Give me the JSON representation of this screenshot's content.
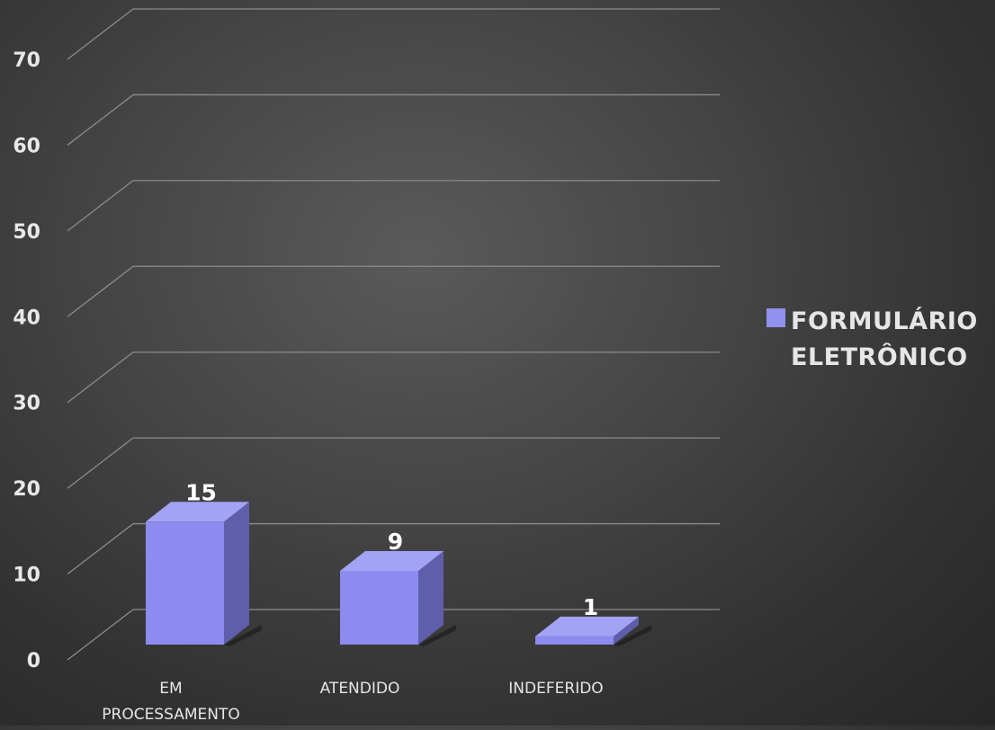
{
  "chart_data": {
    "type": "bar",
    "categories": [
      "EM PROCESSAMENTO",
      "ATENDIDO",
      "INDEFERIDO"
    ],
    "series": [
      {
        "name": "FORMULÁRIO ELETRÔNICO",
        "values": [
          15,
          9,
          1
        ]
      }
    ],
    "ylim": [
      0,
      70
    ],
    "yticks": [
      0,
      10,
      20,
      30,
      40,
      50,
      60,
      70
    ],
    "grid": true,
    "legend_position": "right",
    "style": "3d-column",
    "colors": {
      "front": "#8b8bf0",
      "side": "#5e5eaa",
      "top": "#a3a3f5",
      "grid": "#8c8c8c"
    }
  }
}
